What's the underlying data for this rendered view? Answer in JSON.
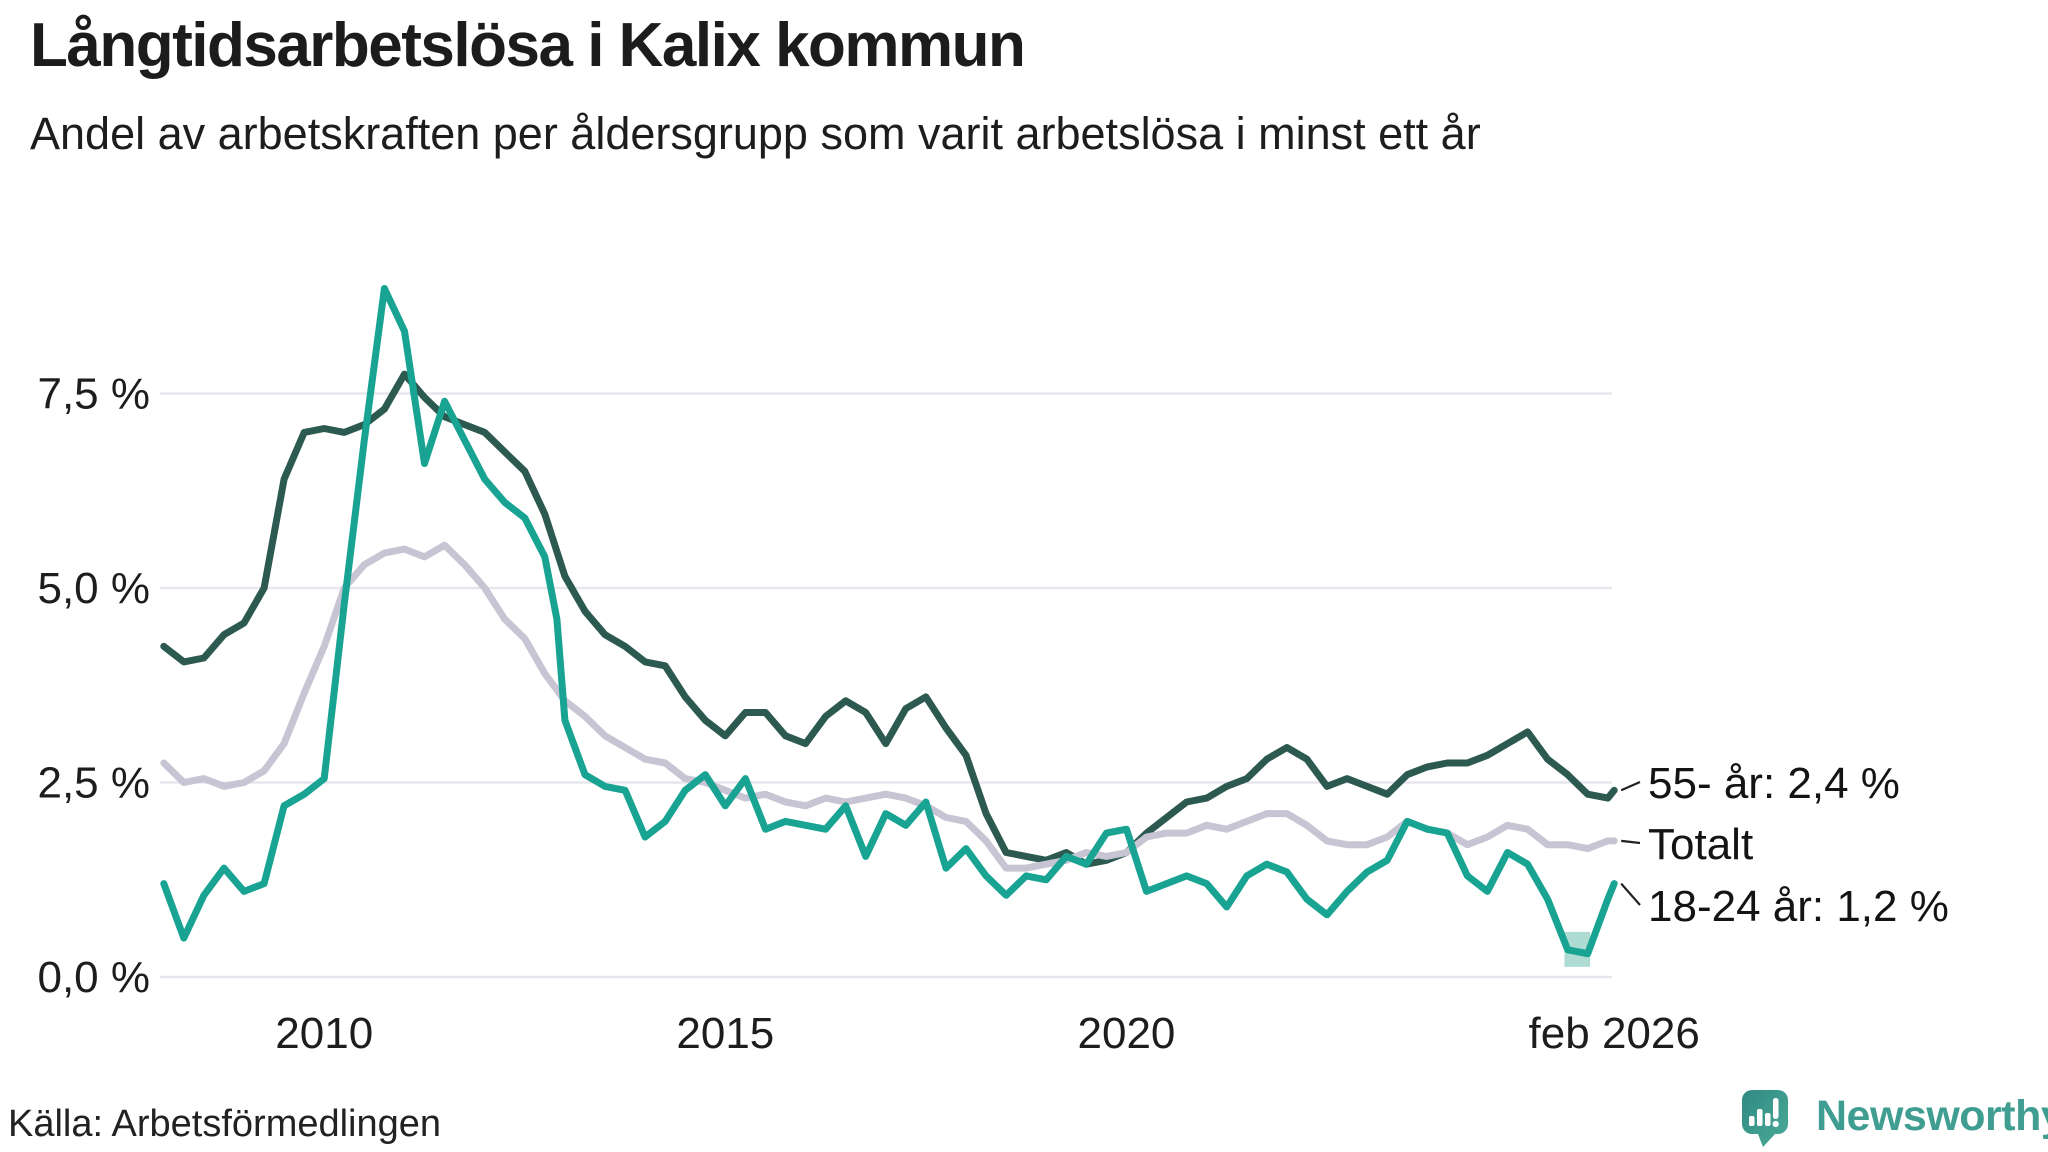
{
  "header": {
    "title": "Långtidsarbetslösa i Kalix kommun",
    "subtitle": "Andel av arbetskraften per åldersgrupp som varit arbetslösa i minst ett år"
  },
  "footer": {
    "source": "Källa: Arbetsförmedlingen",
    "brand": "Newsworthy"
  },
  "colors": {
    "series_55": "#2d5a50",
    "series_totalt": "#c7c5d4",
    "series_1824": "#18a392",
    "gridline": "#e7e6ec",
    "lowlight_band": "#aedcd3",
    "leader_line": "#222222",
    "brand_teal": "#3f9e91",
    "text": "#1a1a1a"
  },
  "chart_data": {
    "type": "line",
    "title": "Långtidsarbetslösa i Kalix kommun",
    "subtitle": "Andel av arbetskraften per åldersgrupp som varit arbetslösa i minst ett år",
    "source": "Källa: Arbetsförmedlingen",
    "x_unit": "decimal_year",
    "xlim": [
      2008.04,
      2026.09
    ],
    "ylim": [
      0,
      9.3
    ],
    "grid": true,
    "legend_position": "right-end-labels",
    "yticks": [
      {
        "value": 0.0,
        "label": "0,0 %"
      },
      {
        "value": 2.5,
        "label": "2,5 %"
      },
      {
        "value": 5.0,
        "label": "5,0 %"
      },
      {
        "value": 7.5,
        "label": "7,5 %"
      }
    ],
    "xticks": [
      {
        "value": 2010,
        "label": "2010"
      },
      {
        "value": 2015,
        "label": "2015"
      },
      {
        "value": 2020,
        "label": "2020"
      },
      {
        "value": 2026.08,
        "label": "feb 2026"
      }
    ],
    "series": [
      {
        "name": "55- år",
        "end_label": "55- år: 2,4 %",
        "latest_value": "2,4 %",
        "color": "#2d5a50",
        "points": [
          [
            2008.0,
            4.25
          ],
          [
            2008.25,
            4.05
          ],
          [
            2008.5,
            4.1
          ],
          [
            2008.75,
            4.4
          ],
          [
            2009.0,
            4.55
          ],
          [
            2009.25,
            5.0
          ],
          [
            2009.5,
            6.4
          ],
          [
            2009.75,
            7.0
          ],
          [
            2010.0,
            7.05
          ],
          [
            2010.25,
            7.0
          ],
          [
            2010.5,
            7.1
          ],
          [
            2010.75,
            7.3
          ],
          [
            2011.0,
            7.75
          ],
          [
            2011.25,
            7.45
          ],
          [
            2011.5,
            7.2
          ],
          [
            2011.75,
            7.1
          ],
          [
            2012.0,
            7.0
          ],
          [
            2012.25,
            6.75
          ],
          [
            2012.5,
            6.5
          ],
          [
            2012.75,
            5.95
          ],
          [
            2013.0,
            5.15
          ],
          [
            2013.25,
            4.7
          ],
          [
            2013.5,
            4.4
          ],
          [
            2013.75,
            4.25
          ],
          [
            2014.0,
            4.05
          ],
          [
            2014.25,
            4.0
          ],
          [
            2014.5,
            3.6
          ],
          [
            2014.75,
            3.3
          ],
          [
            2015.0,
            3.1
          ],
          [
            2015.25,
            3.4
          ],
          [
            2015.5,
            3.4
          ],
          [
            2015.75,
            3.1
          ],
          [
            2016.0,
            3.0
          ],
          [
            2016.25,
            3.35
          ],
          [
            2016.5,
            3.55
          ],
          [
            2016.75,
            3.4
          ],
          [
            2017.0,
            3.0
          ],
          [
            2017.25,
            3.45
          ],
          [
            2017.5,
            3.6
          ],
          [
            2017.75,
            3.2
          ],
          [
            2018.0,
            2.85
          ],
          [
            2018.25,
            2.1
          ],
          [
            2018.5,
            1.6
          ],
          [
            2018.75,
            1.55
          ],
          [
            2019.0,
            1.5
          ],
          [
            2019.25,
            1.6
          ],
          [
            2019.5,
            1.45
          ],
          [
            2019.75,
            1.5
          ],
          [
            2020.0,
            1.6
          ],
          [
            2020.25,
            1.85
          ],
          [
            2020.5,
            2.05
          ],
          [
            2020.75,
            2.25
          ],
          [
            2021.0,
            2.3
          ],
          [
            2021.25,
            2.45
          ],
          [
            2021.5,
            2.55
          ],
          [
            2021.75,
            2.8
          ],
          [
            2022.0,
            2.95
          ],
          [
            2022.25,
            2.8
          ],
          [
            2022.5,
            2.45
          ],
          [
            2022.75,
            2.55
          ],
          [
            2023.0,
            2.45
          ],
          [
            2023.25,
            2.35
          ],
          [
            2023.5,
            2.6
          ],
          [
            2023.75,
            2.7
          ],
          [
            2024.0,
            2.75
          ],
          [
            2024.25,
            2.75
          ],
          [
            2024.5,
            2.85
          ],
          [
            2024.75,
            3.0
          ],
          [
            2025.0,
            3.15
          ],
          [
            2025.25,
            2.8
          ],
          [
            2025.5,
            2.6
          ],
          [
            2025.75,
            2.35
          ],
          [
            2026.0,
            2.3
          ],
          [
            2026.08,
            2.4
          ]
        ]
      },
      {
        "name": "Totalt",
        "end_label": "Totalt",
        "latest_value": "1,75 %",
        "color": "#c7c5d4",
        "points": [
          [
            2008.0,
            2.75
          ],
          [
            2008.25,
            2.5
          ],
          [
            2008.5,
            2.55
          ],
          [
            2008.75,
            2.45
          ],
          [
            2009.0,
            2.5
          ],
          [
            2009.25,
            2.65
          ],
          [
            2009.5,
            3.0
          ],
          [
            2009.75,
            3.65
          ],
          [
            2010.0,
            4.25
          ],
          [
            2010.25,
            5.0
          ],
          [
            2010.5,
            5.3
          ],
          [
            2010.75,
            5.45
          ],
          [
            2011.0,
            5.5
          ],
          [
            2011.25,
            5.4
          ],
          [
            2011.5,
            5.55
          ],
          [
            2011.75,
            5.3
          ],
          [
            2012.0,
            5.0
          ],
          [
            2012.25,
            4.6
          ],
          [
            2012.5,
            4.35
          ],
          [
            2012.75,
            3.9
          ],
          [
            2013.0,
            3.55
          ],
          [
            2013.25,
            3.35
          ],
          [
            2013.5,
            3.1
          ],
          [
            2013.75,
            2.95
          ],
          [
            2014.0,
            2.8
          ],
          [
            2014.25,
            2.75
          ],
          [
            2014.5,
            2.55
          ],
          [
            2014.75,
            2.5
          ],
          [
            2015.0,
            2.4
          ],
          [
            2015.25,
            2.3
          ],
          [
            2015.5,
            2.35
          ],
          [
            2015.75,
            2.25
          ],
          [
            2016.0,
            2.2
          ],
          [
            2016.25,
            2.3
          ],
          [
            2016.5,
            2.25
          ],
          [
            2016.75,
            2.3
          ],
          [
            2017.0,
            2.35
          ],
          [
            2017.25,
            2.3
          ],
          [
            2017.5,
            2.2
          ],
          [
            2017.75,
            2.05
          ],
          [
            2018.0,
            2.0
          ],
          [
            2018.25,
            1.75
          ],
          [
            2018.5,
            1.4
          ],
          [
            2018.75,
            1.4
          ],
          [
            2019.0,
            1.45
          ],
          [
            2019.25,
            1.5
          ],
          [
            2019.5,
            1.6
          ],
          [
            2019.75,
            1.55
          ],
          [
            2020.0,
            1.6
          ],
          [
            2020.25,
            1.8
          ],
          [
            2020.5,
            1.85
          ],
          [
            2020.75,
            1.85
          ],
          [
            2021.0,
            1.95
          ],
          [
            2021.25,
            1.9
          ],
          [
            2021.5,
            2.0
          ],
          [
            2021.75,
            2.1
          ],
          [
            2022.0,
            2.1
          ],
          [
            2022.25,
            1.95
          ],
          [
            2022.5,
            1.75
          ],
          [
            2022.75,
            1.7
          ],
          [
            2023.0,
            1.7
          ],
          [
            2023.25,
            1.8
          ],
          [
            2023.5,
            2.0
          ],
          [
            2023.75,
            1.9
          ],
          [
            2024.0,
            1.85
          ],
          [
            2024.25,
            1.7
          ],
          [
            2024.5,
            1.8
          ],
          [
            2024.75,
            1.95
          ],
          [
            2025.0,
            1.9
          ],
          [
            2025.25,
            1.7
          ],
          [
            2025.5,
            1.7
          ],
          [
            2025.75,
            1.65
          ],
          [
            2026.0,
            1.75
          ],
          [
            2026.08,
            1.75
          ]
        ]
      },
      {
        "name": "18-24 år",
        "end_label": "18-24 år: 1,2 %",
        "latest_value": "1,2 %",
        "color": "#18a392",
        "points": [
          [
            2008.0,
            1.2
          ],
          [
            2008.25,
            0.5
          ],
          [
            2008.5,
            1.05
          ],
          [
            2008.75,
            1.4
          ],
          [
            2009.0,
            1.1
          ],
          [
            2009.25,
            1.2
          ],
          [
            2009.5,
            2.2
          ],
          [
            2009.75,
            2.35
          ],
          [
            2010.0,
            2.55
          ],
          [
            2010.25,
            4.8
          ],
          [
            2010.5,
            6.9
          ],
          [
            2010.75,
            8.85
          ],
          [
            2011.0,
            8.3
          ],
          [
            2011.25,
            6.6
          ],
          [
            2011.5,
            7.4
          ],
          [
            2011.75,
            6.9
          ],
          [
            2012.0,
            6.4
          ],
          [
            2012.25,
            6.1
          ],
          [
            2012.5,
            5.9
          ],
          [
            2012.75,
            5.4
          ],
          [
            2012.9,
            4.6
          ],
          [
            2013.0,
            3.3
          ],
          [
            2013.25,
            2.6
          ],
          [
            2013.5,
            2.45
          ],
          [
            2013.75,
            2.4
          ],
          [
            2014.0,
            1.8
          ],
          [
            2014.25,
            2.0
          ],
          [
            2014.5,
            2.4
          ],
          [
            2014.75,
            2.6
          ],
          [
            2015.0,
            2.2
          ],
          [
            2015.25,
            2.55
          ],
          [
            2015.5,
            1.9
          ],
          [
            2015.75,
            2.0
          ],
          [
            2016.0,
            1.95
          ],
          [
            2016.25,
            1.9
          ],
          [
            2016.5,
            2.2
          ],
          [
            2016.75,
            1.55
          ],
          [
            2017.0,
            2.1
          ],
          [
            2017.25,
            1.95
          ],
          [
            2017.5,
            2.25
          ],
          [
            2017.75,
            1.4
          ],
          [
            2018.0,
            1.65
          ],
          [
            2018.25,
            1.3
          ],
          [
            2018.5,
            1.05
          ],
          [
            2018.75,
            1.3
          ],
          [
            2019.0,
            1.25
          ],
          [
            2019.25,
            1.55
          ],
          [
            2019.5,
            1.45
          ],
          [
            2019.75,
            1.85
          ],
          [
            2020.0,
            1.9
          ],
          [
            2020.25,
            1.1
          ],
          [
            2020.5,
            1.2
          ],
          [
            2020.75,
            1.3
          ],
          [
            2021.0,
            1.2
          ],
          [
            2021.25,
            0.9
          ],
          [
            2021.5,
            1.3
          ],
          [
            2021.75,
            1.45
          ],
          [
            2022.0,
            1.35
          ],
          [
            2022.25,
            1.0
          ],
          [
            2022.5,
            0.8
          ],
          [
            2022.75,
            1.1
          ],
          [
            2023.0,
            1.35
          ],
          [
            2023.25,
            1.5
          ],
          [
            2023.5,
            2.0
          ],
          [
            2023.75,
            1.9
          ],
          [
            2024.0,
            1.85
          ],
          [
            2024.25,
            1.3
          ],
          [
            2024.5,
            1.1
          ],
          [
            2024.75,
            1.6
          ],
          [
            2025.0,
            1.45
          ],
          [
            2025.25,
            1.0
          ],
          [
            2025.5,
            0.35
          ],
          [
            2025.75,
            0.3
          ],
          [
            2026.0,
            1.0
          ],
          [
            2026.08,
            1.2
          ]
        ]
      }
    ],
    "annotations": [
      {
        "type": "band",
        "series": "18-24 år",
        "x0": 2025.46,
        "x1": 2025.78,
        "y0": 0.13,
        "y1": 0.58,
        "color": "#aedcd3"
      }
    ]
  }
}
